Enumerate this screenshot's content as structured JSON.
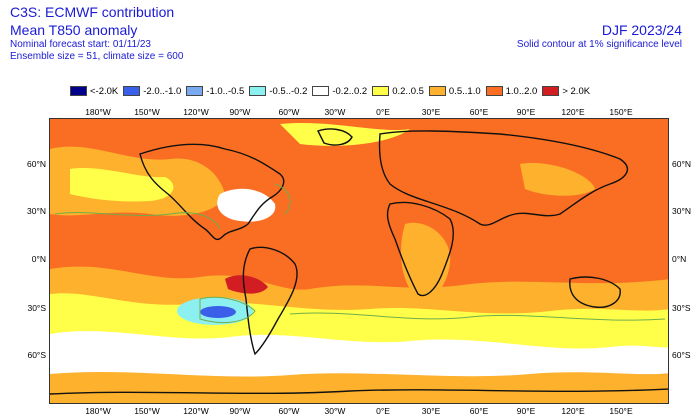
{
  "header": {
    "line1": "C3S: ECMWF contribution",
    "line2": "Mean T850 anomaly",
    "line3": "Nominal forecast start: 01/11/23",
    "line4": "Ensemble size = 51, climate size = 600"
  },
  "right_header": {
    "season": "DJF 2023/24",
    "note": "Solid contour at 1% significance level"
  },
  "legend": [
    {
      "label": "<-2.0K",
      "color": "#00008b"
    },
    {
      "label": "-2.0..-1.0",
      "color": "#3a5fe8"
    },
    {
      "label": "-1.0..-0.5",
      "color": "#79aaf0"
    },
    {
      "label": "-0.5..-0.2",
      "color": "#8cf0f0"
    },
    {
      "label": "-0.2..0.2",
      "color": "#ffffff"
    },
    {
      "label": "0.2..0.5",
      "color": "#ffff4a"
    },
    {
      "label": "0.5..1.0",
      "color": "#fdb12c"
    },
    {
      "label": "1.0..2.0",
      "color": "#fa6e24"
    },
    {
      "label": "> 2.0K",
      "color": "#d21e23"
    }
  ],
  "axes": {
    "lon_ticks": [
      "180°W",
      "150°W",
      "120°W",
      "90°W",
      "60°W",
      "30°W",
      "0°E",
      "30°E",
      "60°E",
      "90°E",
      "120°E",
      "150°E"
    ],
    "lat_ticks": [
      "60°N",
      "30°N",
      "0°N",
      "30°S",
      "60°S"
    ]
  }
}
